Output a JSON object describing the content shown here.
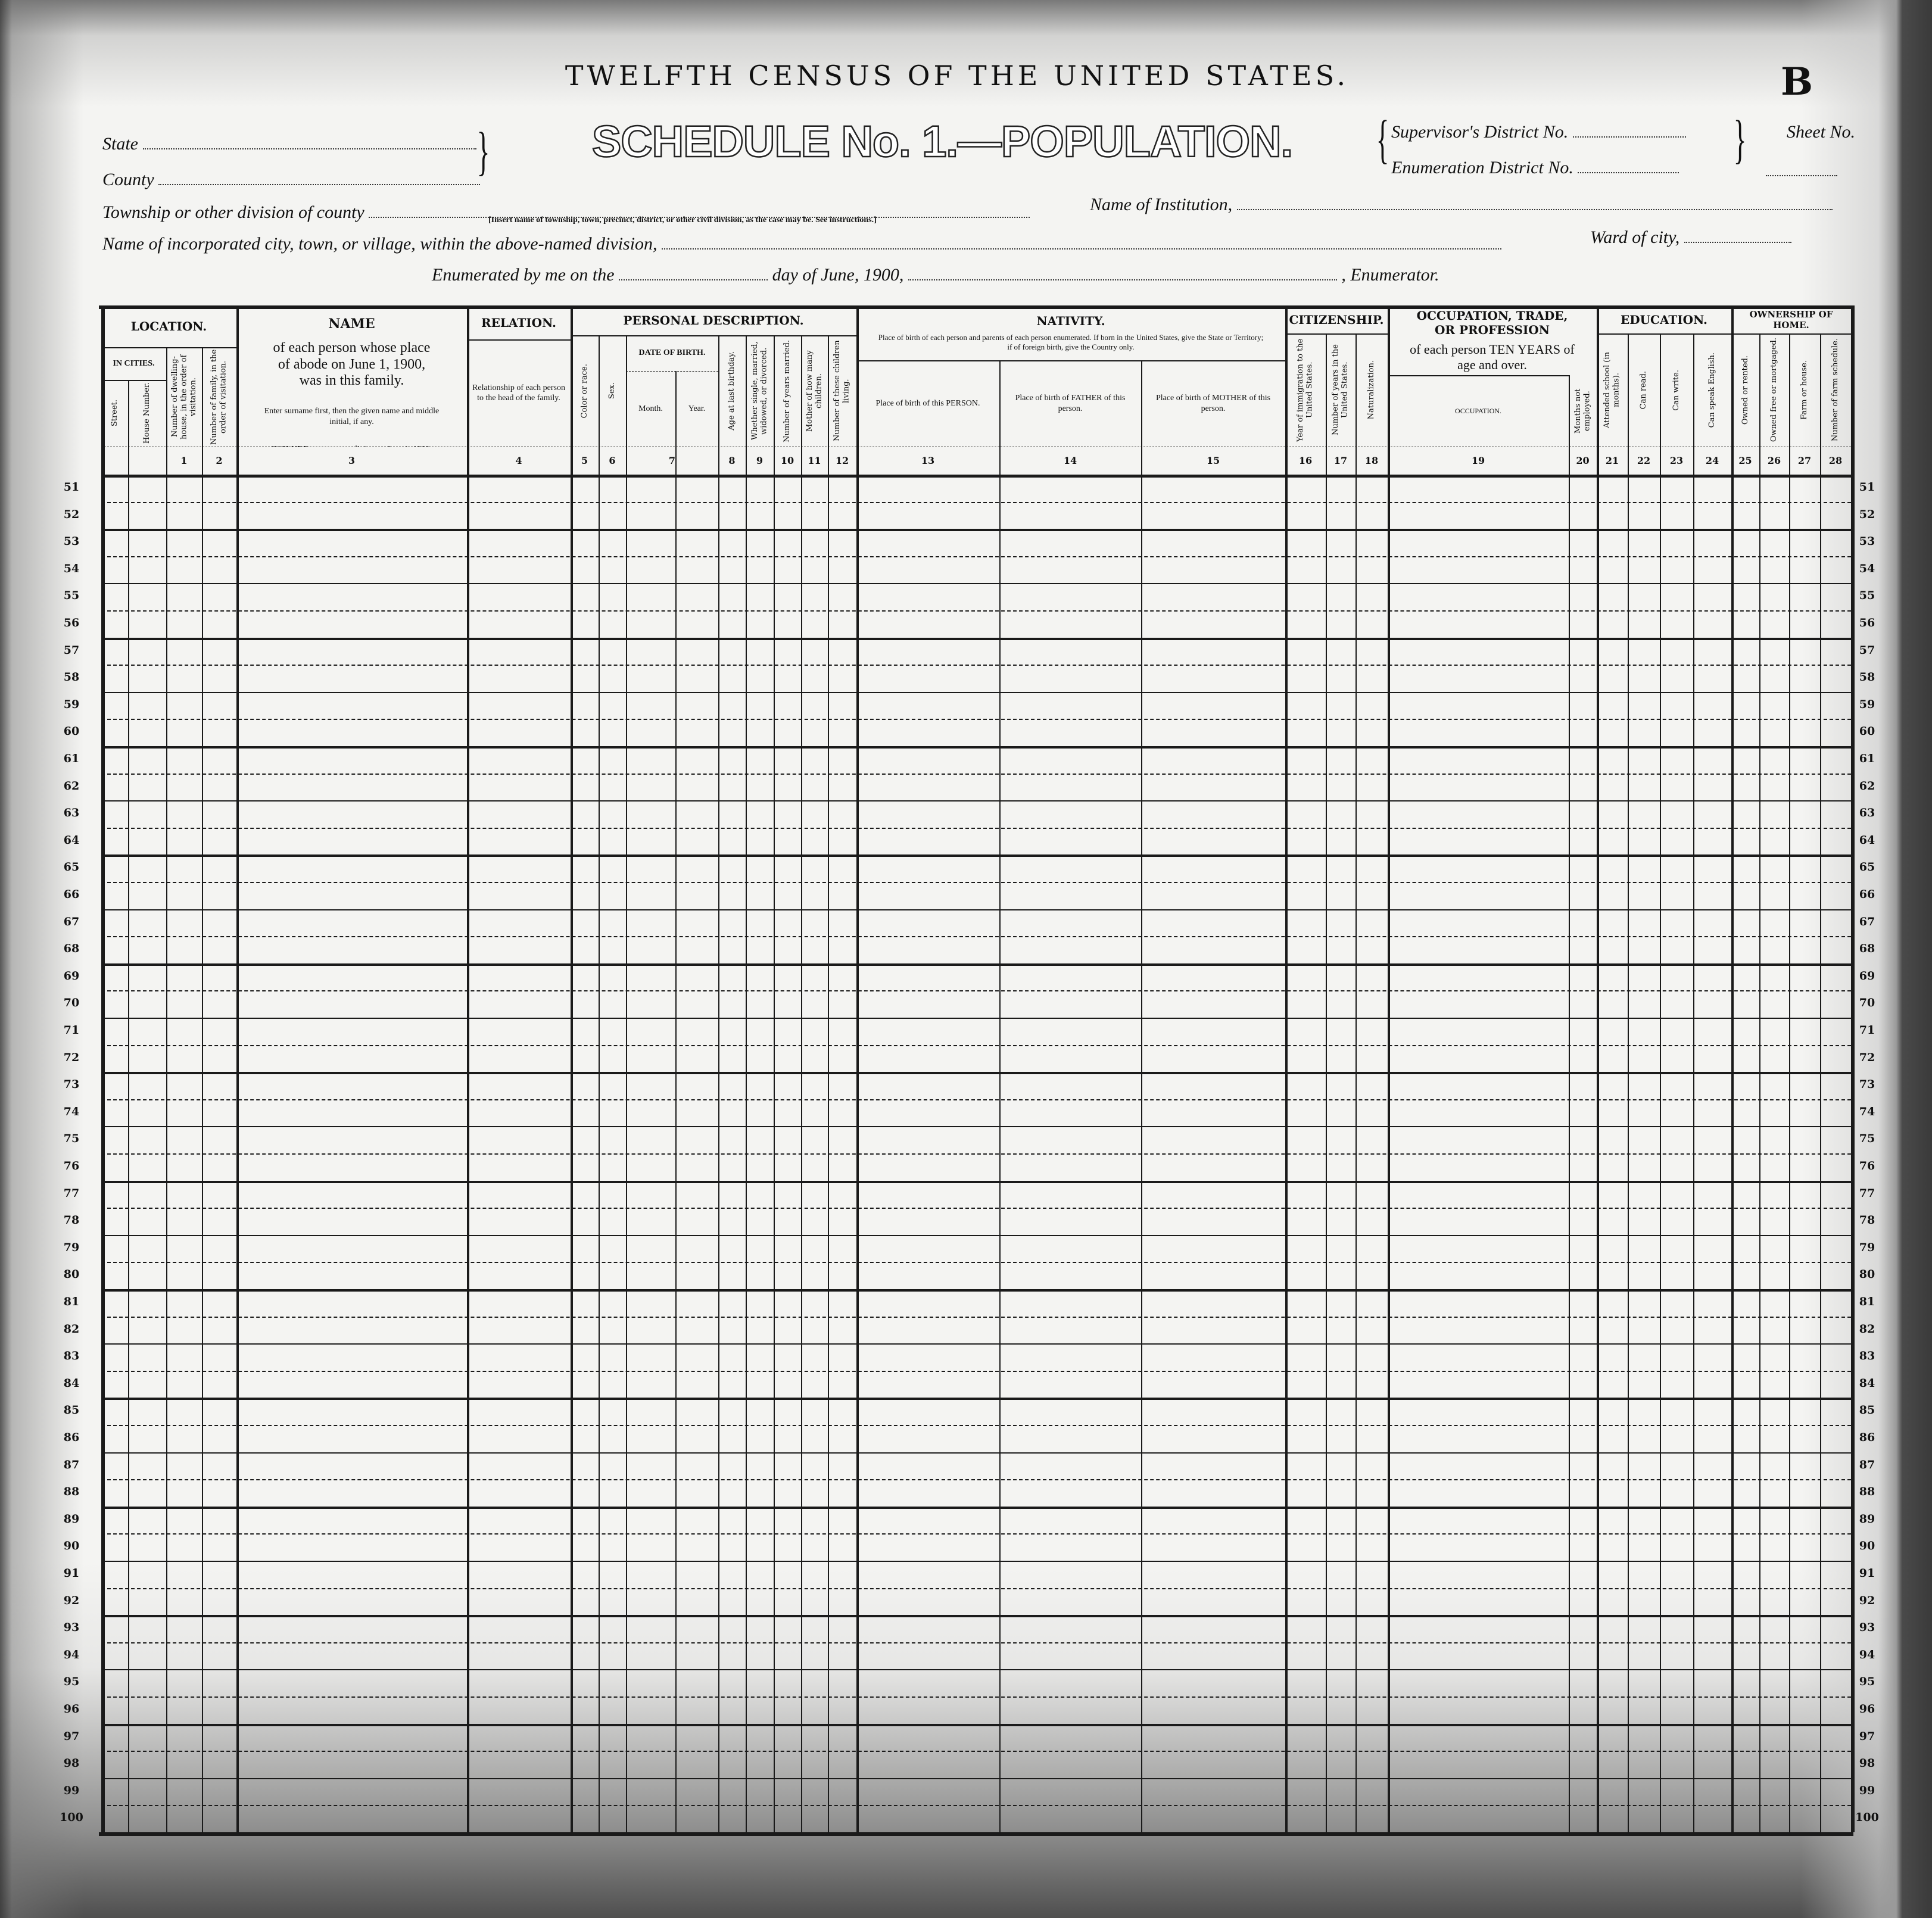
{
  "header": {
    "title": "TWELFTH CENSUS OF THE UNITED STATES.",
    "schedule": "SCHEDULE No. 1.—POPULATION.",
    "sheet_letter": "B",
    "state_label": "State",
    "state_value": "",
    "county_label": "County",
    "county_value": "",
    "supervisor_label": "Supervisor's District No.",
    "supervisor_value": "",
    "enumeration_label": "Enumeration District No.",
    "enumeration_value": "",
    "sheet_label": "Sheet No.",
    "sheet_value": "",
    "township_label": "Township or other division of county",
    "township_value": "",
    "township_note": "[Insert name of township, town, precinct, district, or other civil division, as the case may be. See instructions.]",
    "institution_label": "Name of Institution,",
    "institution_value": "",
    "city_label": "Name of incorporated city, town, or village, within the above-named division,",
    "city_value": "",
    "ward_label": "Ward of city,",
    "ward_value": "",
    "enumerated_label": "Enumerated by me on the",
    "enumerated_day": "",
    "june_label": "day of June, 1900,",
    "enumerator_value": "",
    "enumerator_label": ", Enumerator."
  },
  "groups": {
    "location": "LOCATION.",
    "in_cities": "IN CITIES.",
    "name_title": "NAME",
    "name_desc": "of each person whose place of abode on June 1, 1900, was in this family.",
    "name_note1": "Enter surname first, then the given name and middle initial, if any.",
    "name_note2": "INCLUDE every person living on June 1, 1900. OMIT children born since June 1, 1900.",
    "relation": "RELATION.",
    "personal": "PERSONAL DESCRIPTION.",
    "date_of_birth": "DATE OF BIRTH.",
    "nativity": "NATIVITY.",
    "nativity_desc": "Place of birth of each person and parents of each person enumerated. If born in the United States, give the State or Territory; if of foreign birth, give the Country only.",
    "citizenship": "CITIZENSHIP.",
    "occupation": "OCCUPATION, TRADE, OR PROFESSION",
    "occupation_desc": "of each person TEN YEARS of age and over.",
    "education": "EDUCATION.",
    "ownership": "OWNERSHIP OF HOME."
  },
  "columns": [
    {
      "label": "Street.",
      "number": ""
    },
    {
      "label": "House Number.",
      "number": ""
    },
    {
      "label": "Number of dwelling-house, in the order of visitation.",
      "number": "1"
    },
    {
      "label": "Number of family, in the order of visitation.",
      "number": "2"
    },
    {
      "label": "",
      "number": "3"
    },
    {
      "label": "Relationship of each person to the head of the family.",
      "number": "4"
    },
    {
      "label": "Color or race.",
      "number": "5"
    },
    {
      "label": "Sex.",
      "number": "6"
    },
    {
      "label": "Month.",
      "number": "7"
    },
    {
      "label": "Year.",
      "number": ""
    },
    {
      "label": "Age at last birthday.",
      "number": "8"
    },
    {
      "label": "Whether single, married, widowed, or divorced.",
      "number": "9"
    },
    {
      "label": "Number of years married.",
      "number": "10"
    },
    {
      "label": "Mother of how many children.",
      "number": "11"
    },
    {
      "label": "Number of these children living.",
      "number": "12"
    },
    {
      "label": "Place of birth of this PERSON.",
      "number": "13"
    },
    {
      "label": "Place of birth of FATHER of this person.",
      "number": "14"
    },
    {
      "label": "Place of birth of MOTHER of this person.",
      "number": "15"
    },
    {
      "label": "Year of immigration to the United States.",
      "number": "16"
    },
    {
      "label": "Number of years in the United States.",
      "number": "17"
    },
    {
      "label": "Naturalization.",
      "number": "18"
    },
    {
      "label": "OCCUPATION.",
      "number": "19"
    },
    {
      "label": "Months not employed.",
      "number": "20"
    },
    {
      "label": "Attended school (in months).",
      "number": "21"
    },
    {
      "label": "Can read.",
      "number": "22"
    },
    {
      "label": "Can write.",
      "number": "23"
    },
    {
      "label": "Can speak English.",
      "number": "24"
    },
    {
      "label": "Owned or rented.",
      "number": "25"
    },
    {
      "label": "Owned free or mortgaged.",
      "number": "26"
    },
    {
      "label": "Farm or house.",
      "number": "27"
    },
    {
      "label": "Number of farm schedule.",
      "number": "28"
    }
  ],
  "rows": [
    "51",
    "52",
    "53",
    "54",
    "55",
    "56",
    "57",
    "58",
    "59",
    "60",
    "61",
    "62",
    "63",
    "64",
    "65",
    "66",
    "67",
    "68",
    "69",
    "70",
    "71",
    "72",
    "73",
    "74",
    "75",
    "76",
    "77",
    "78",
    "79",
    "80",
    "81",
    "82",
    "83",
    "84",
    "85",
    "86",
    "87",
    "88",
    "89",
    "90",
    "91",
    "92",
    "93",
    "94",
    "95",
    "96",
    "97",
    "98",
    "99",
    "100"
  ]
}
